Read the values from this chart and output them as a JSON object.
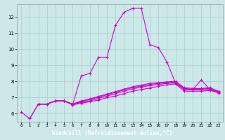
{
  "xlabel": "Windchill (Refroidissement éolien,°C)",
  "bg_color": "#cce8e8",
  "grid_color": "#aacccc",
  "line_color": "#cc00cc",
  "xlabel_bg": "#6633aa",
  "xlabel_fg": "#ffffff",
  "xlim": [
    -0.5,
    23.5
  ],
  "ylim": [
    5.5,
    12.8
  ],
  "xticks": [
    0,
    1,
    2,
    3,
    4,
    5,
    6,
    7,
    8,
    9,
    10,
    11,
    12,
    13,
    14,
    15,
    16,
    17,
    18,
    19,
    20,
    21,
    22,
    23
  ],
  "yticks": [
    6,
    7,
    8,
    9,
    10,
    11,
    12
  ],
  "line1_x": [
    0,
    1,
    2,
    3,
    4,
    5,
    6,
    7,
    8,
    9,
    10,
    11,
    12,
    13,
    14,
    15,
    16,
    17,
    18,
    19,
    20,
    21,
    22,
    23
  ],
  "line1_y": [
    6.1,
    5.7,
    6.6,
    6.6,
    6.8,
    6.8,
    6.55,
    8.35,
    8.5,
    9.5,
    9.5,
    11.5,
    12.3,
    12.55,
    12.55,
    10.3,
    10.1,
    9.2,
    7.9,
    7.55,
    7.5,
    8.1,
    7.5,
    7.3
  ],
  "line2_x": [
    1,
    2,
    3,
    4,
    5,
    6,
    7,
    8,
    9,
    10,
    11,
    12,
    13,
    14,
    15,
    16,
    17,
    18,
    19,
    20,
    21,
    22,
    23
  ],
  "line2_y": [
    5.7,
    6.6,
    6.6,
    6.8,
    6.8,
    6.55,
    6.65,
    6.75,
    6.85,
    7.0,
    7.1,
    7.25,
    7.4,
    7.5,
    7.6,
    7.7,
    7.8,
    7.85,
    7.4,
    7.4,
    7.4,
    7.45,
    7.3
  ],
  "line3_x": [
    2,
    3,
    4,
    5,
    6,
    7,
    8,
    9,
    10,
    11,
    12,
    13,
    14,
    15,
    16,
    17,
    18,
    19,
    20,
    21,
    22,
    23
  ],
  "line3_y": [
    6.6,
    6.6,
    6.8,
    6.8,
    6.6,
    6.7,
    6.8,
    6.95,
    7.1,
    7.25,
    7.4,
    7.55,
    7.65,
    7.75,
    7.82,
    7.88,
    7.92,
    7.5,
    7.48,
    7.48,
    7.52,
    7.32
  ],
  "line4_x": [
    2,
    3,
    4,
    5,
    6,
    7,
    8,
    9,
    10,
    11,
    12,
    13,
    14,
    15,
    16,
    17,
    18,
    19,
    20,
    21,
    22,
    23
  ],
  "line4_y": [
    6.6,
    6.6,
    6.8,
    6.8,
    6.6,
    6.75,
    6.88,
    7.02,
    7.18,
    7.33,
    7.48,
    7.62,
    7.72,
    7.82,
    7.88,
    7.93,
    7.97,
    7.58,
    7.52,
    7.53,
    7.58,
    7.36
  ],
  "line5_x": [
    2,
    3,
    4,
    5,
    6,
    7,
    8,
    9,
    10,
    11,
    12,
    13,
    14,
    15,
    16,
    17,
    18,
    19,
    20,
    21,
    22,
    23
  ],
  "line5_y": [
    6.6,
    6.6,
    6.8,
    6.8,
    6.6,
    6.8,
    6.92,
    7.08,
    7.22,
    7.38,
    7.53,
    7.68,
    7.78,
    7.88,
    7.93,
    7.98,
    8.02,
    7.62,
    7.57,
    7.57,
    7.62,
    7.4
  ]
}
